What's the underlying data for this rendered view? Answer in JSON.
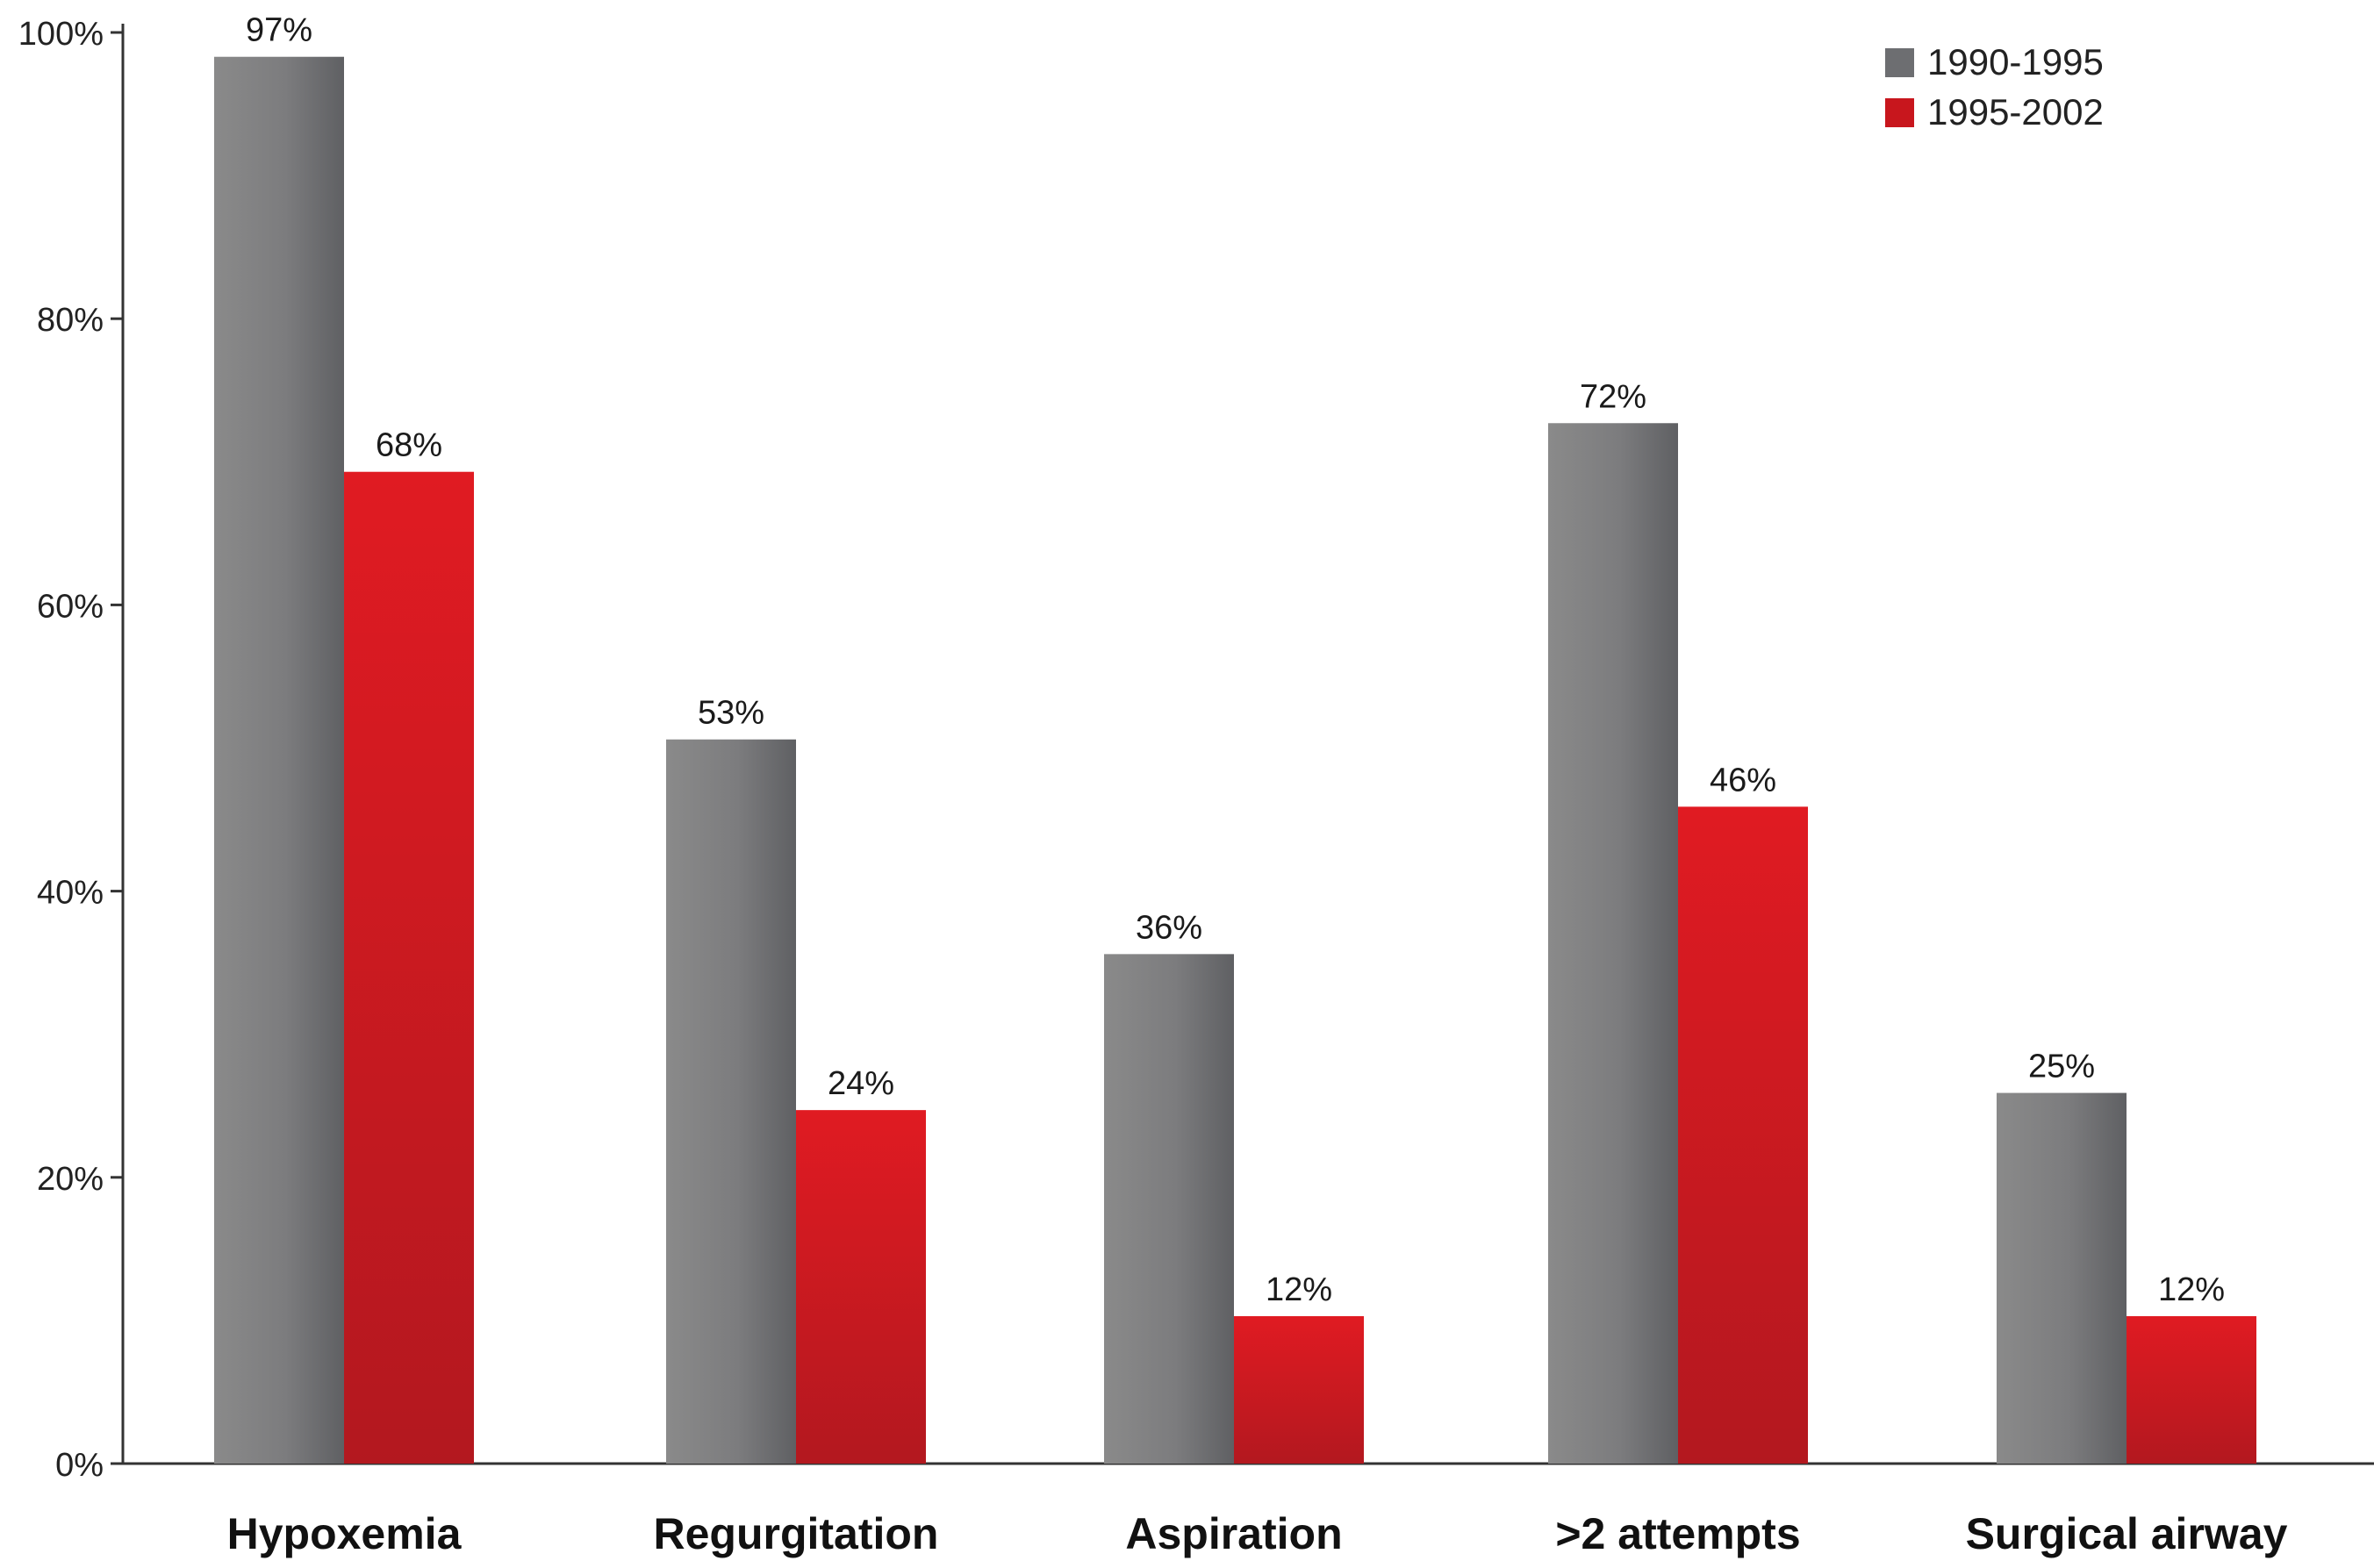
{
  "chart_data": {
    "type": "bar",
    "title": "",
    "xlabel": "",
    "ylabel": "",
    "categories": [
      "Hypoxemia",
      "Regurgitation",
      "Aspiration",
      ">2 attempts",
      "Surgical airway"
    ],
    "series": [
      {
        "name": "1990-1995",
        "values": [
          97,
          53,
          36,
          72,
          25
        ],
        "bar_heights": [
          98.3,
          50.6,
          35.6,
          72.7,
          25.9
        ],
        "labels": [
          "97%",
          "53%",
          "36%",
          "72%",
          "25%"
        ],
        "color": "#6d6e71"
      },
      {
        "name": "1995-2002",
        "values": [
          68,
          24,
          12,
          46,
          12
        ],
        "bar_heights": [
          69.3,
          24.7,
          10.3,
          45.9,
          10.3
        ],
        "labels": [
          "68%",
          "24%",
          "12%",
          "46%",
          "12%"
        ],
        "color": "#c8161d"
      }
    ],
    "ylim": [
      0,
      100
    ],
    "yticks": [
      0,
      20,
      40,
      60,
      80,
      100
    ],
    "ytick_labels": [
      "0%",
      "20%",
      "40%",
      "60%",
      "80%",
      "100%"
    ],
    "grid": false,
    "legend_position": "top-right"
  }
}
